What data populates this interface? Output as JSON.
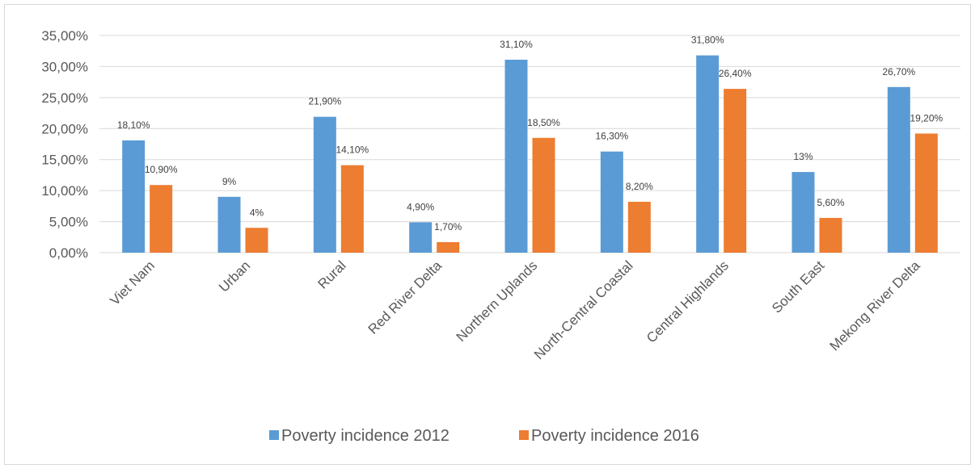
{
  "chart_data": {
    "type": "bar",
    "categories": [
      "Viet Nam",
      "Urban",
      "Rural",
      "Red River Delta",
      "Northern Uplands",
      "North-Central Coastal",
      "Central Highlands",
      "South East",
      "Mekong River Delta"
    ],
    "series": [
      {
        "name": "Poverty incidence 2012",
        "color": "#5b9bd5",
        "values": [
          18.1,
          9,
          21.9,
          4.9,
          31.1,
          16.3,
          31.8,
          13,
          26.7
        ],
        "labels": [
          "18,10%",
          "9%",
          "21,90%",
          "4,90%",
          "31,10%",
          "16,30%",
          "31,80%",
          "13%",
          "26,70%"
        ]
      },
      {
        "name": "Poverty incidence 2016",
        "color": "#ed7d31",
        "values": [
          10.9,
          4,
          14.1,
          1.7,
          18.5,
          8.2,
          26.4,
          5.6,
          19.2
        ],
        "labels": [
          "10,90%",
          "4%",
          "14,10%",
          "1,70%",
          "18,50%",
          "8,20%",
          "26,40%",
          "5,60%",
          "19,20%"
        ]
      }
    ],
    "ylim": [
      0,
      35
    ],
    "yticks": [
      0,
      5,
      10,
      15,
      20,
      25,
      30,
      35
    ],
    "ytick_labels": [
      "0,00%",
      "5,00%",
      "10,00%",
      "15,00%",
      "20,00%",
      "25,00%",
      "30,00%",
      "35,00%"
    ],
    "grid": true,
    "legend_position": "bottom"
  }
}
